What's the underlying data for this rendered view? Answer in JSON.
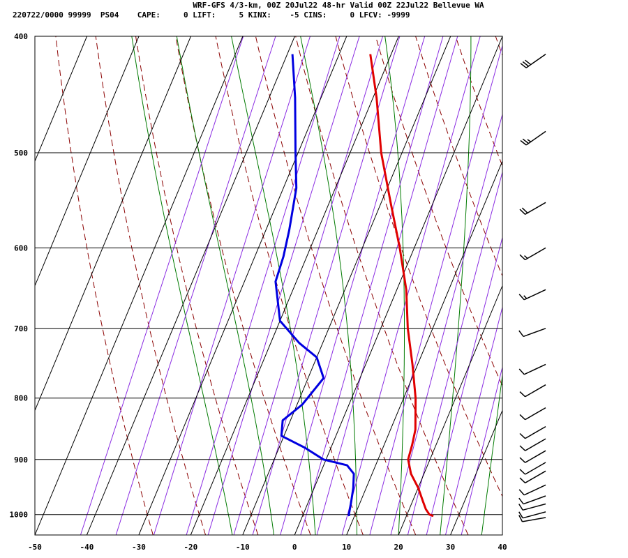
{
  "header": {
    "title": "WRF-GFS 4/3-km, 00Z 20Jul22 48-hr Valid 00Z 22Jul22 Bellevue WA",
    "info": "220722/0000 99999  PS04    CAPE:     0 LIFT:     5 KINX:    -5 CINS:     0 LFCV: -9999"
  },
  "chart_data": {
    "type": "line",
    "skew_t": true,
    "x_label_values": [
      -50,
      -40,
      -30,
      -20,
      -10,
      0,
      10,
      20,
      30,
      40
    ],
    "y_label_values": [
      400,
      500,
      600,
      700,
      800,
      900,
      1000
    ],
    "xlim": [
      -50,
      40
    ],
    "ylim_pressure": [
      1040,
      400
    ],
    "grid": true,
    "colors": {
      "temperature": "#e00000",
      "dewpoint": "#0000e0",
      "dry_adiabat": "#8b0000",
      "moist_adiabat": "#007a00",
      "mixing_ratio": "#8a2be2",
      "grid": "#000000",
      "barb": "#000000"
    },
    "series": [
      {
        "points": [
          {
            "p": 1003,
            "t": 25.2
          },
          {
            "p": 1000,
            "t": 24.3
          },
          {
            "p": 990,
            "t": 23.2
          },
          {
            "p": 975,
            "t": 22.0
          },
          {
            "p": 950,
            "t": 20.0
          },
          {
            "p": 925,
            "t": 17.5
          },
          {
            "p": 900,
            "t": 15.8
          },
          {
            "p": 875,
            "t": 15.4
          },
          {
            "p": 850,
            "t": 14.8
          },
          {
            "p": 800,
            "t": 12.3
          },
          {
            "p": 750,
            "t": 9.0
          },
          {
            "p": 700,
            "t": 5.2
          },
          {
            "p": 650,
            "t": 1.8
          },
          {
            "p": 600,
            "t": -2.8
          },
          {
            "p": 550,
            "t": -8.2
          },
          {
            "p": 500,
            "t": -14.0
          },
          {
            "p": 450,
            "t": -19.3
          },
          {
            "p": 414,
            "t": -24.0
          }
        ]
      },
      {
        "points": [
          {
            "p": 1003,
            "t": 9.0
          },
          {
            "p": 1000,
            "t": 8.8
          },
          {
            "p": 975,
            "t": 8.2
          },
          {
            "p": 950,
            "t": 7.5
          },
          {
            "p": 925,
            "t": 6.5
          },
          {
            "p": 910,
            "t": 4.5
          },
          {
            "p": 900,
            "t": -0.5
          },
          {
            "p": 880,
            "t": -5.0
          },
          {
            "p": 860,
            "t": -10.5
          },
          {
            "p": 835,
            "t": -11.5
          },
          {
            "p": 810,
            "t": -9.0
          },
          {
            "p": 770,
            "t": -7.0
          },
          {
            "p": 740,
            "t": -10.0
          },
          {
            "p": 720,
            "t": -14.5
          },
          {
            "p": 690,
            "t": -20.0
          },
          {
            "p": 640,
            "t": -24.0
          },
          {
            "p": 610,
            "t": -24.5
          },
          {
            "p": 580,
            "t": -25.5
          },
          {
            "p": 535,
            "t": -27.5
          },
          {
            "p": 500,
            "t": -30.5
          },
          {
            "p": 450,
            "t": -35.0
          },
          {
            "p": 414,
            "t": -39.0
          }
        ]
      }
    ],
    "wind_barbs": [
      {
        "p": 414,
        "dir": 235,
        "spd": 30
      },
      {
        "p": 480,
        "dir": 235,
        "spd": 25
      },
      {
        "p": 550,
        "dir": 240,
        "spd": 20
      },
      {
        "p": 600,
        "dir": 240,
        "spd": 15
      },
      {
        "p": 650,
        "dir": 245,
        "spd": 15
      },
      {
        "p": 700,
        "dir": 250,
        "spd": 10
      },
      {
        "p": 750,
        "dir": 245,
        "spd": 10
      },
      {
        "p": 780,
        "dir": 240,
        "spd": 10
      },
      {
        "p": 815,
        "dir": 240,
        "spd": 10
      },
      {
        "p": 845,
        "dir": 240,
        "spd": 10
      },
      {
        "p": 865,
        "dir": 240,
        "spd": 10
      },
      {
        "p": 885,
        "dir": 240,
        "spd": 10
      },
      {
        "p": 905,
        "dir": 240,
        "spd": 10
      },
      {
        "p": 920,
        "dir": 240,
        "spd": 10
      },
      {
        "p": 945,
        "dir": 245,
        "spd": 10
      },
      {
        "p": 965,
        "dir": 250,
        "spd": 10
      },
      {
        "p": 980,
        "dir": 255,
        "spd": 10
      },
      {
        "p": 995,
        "dir": 255,
        "spd": 10
      },
      {
        "p": 1010,
        "dir": 260,
        "spd": 10
      }
    ]
  }
}
